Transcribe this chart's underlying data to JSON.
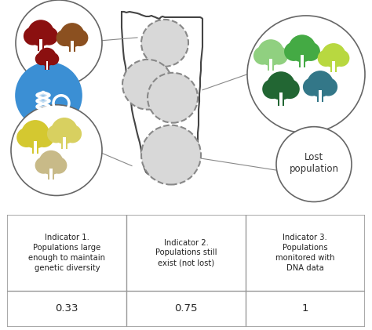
{
  "table_headers": [
    "Indicator 1.\nPopulations large\nenough to maintain\ngenetic diversity",
    "Indicator 2.\nPopulations still\nexist (not lost)",
    "Indicator 3.\nPopulations\nmonitored with\nDNA data"
  ],
  "table_values": [
    "0.33",
    "0.75",
    "1"
  ],
  "bg_color": "#ffffff",
  "illinois_color": "#444444",
  "dashed_circle_fill": "#d8d8d8",
  "dashed_circle_edge": "#888888",
  "outline_circle_edge": "#666666",
  "dna_circle_color": "#3b8fd4",
  "red_tree": "#8B1010",
  "brown_tree": "#8B5020",
  "yellow_tree1": "#d4c830",
  "yellow_tree2": "#d8d060",
  "beige_tree": "#c8ba88",
  "green_trees": [
    "#90d080",
    "#44aa44",
    "#b8d840",
    "#226633",
    "#337788"
  ],
  "lost_pop_text": "Lost\npopulation"
}
